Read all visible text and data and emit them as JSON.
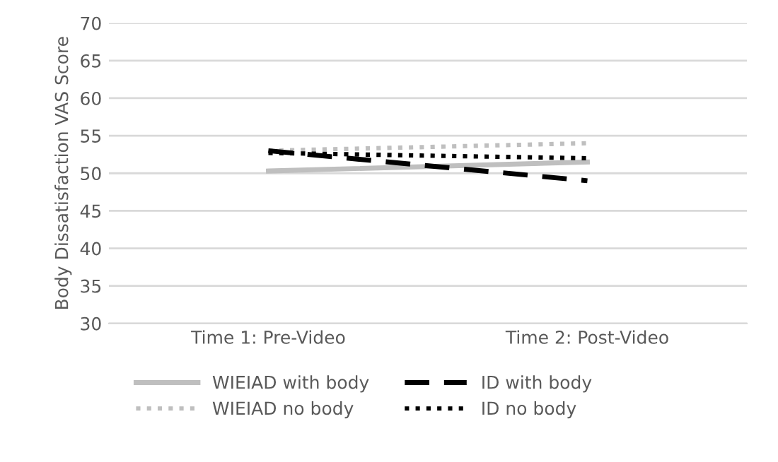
{
  "chart_data": {
    "type": "line",
    "ylabel": "Body Dissatisfaction VAS Score",
    "categories": [
      "Time 1: Pre-Video",
      "Time 2: Post-Video"
    ],
    "series": [
      {
        "name": "WIEIAD with body",
        "color": "#bfbfbf",
        "line_style": "solid",
        "values": [
          50.3,
          51.5
        ]
      },
      {
        "name": "WIEIAD no body",
        "color": "#bfbfbf",
        "line_style": "dotted",
        "values": [
          53.0,
          54.0
        ]
      },
      {
        "name": "ID with body",
        "color": "#000000",
        "line_style": "dashed",
        "values": [
          53.0,
          49.0
        ]
      },
      {
        "name": "ID no body",
        "color": "#000000",
        "line_style": "dotted",
        "values": [
          52.7,
          52.0
        ]
      }
    ],
    "ylim": [
      30,
      70
    ],
    "yticks": [
      30,
      35,
      40,
      45,
      50,
      55,
      60,
      65,
      70
    ],
    "grid": "y",
    "legend": "bottom"
  }
}
